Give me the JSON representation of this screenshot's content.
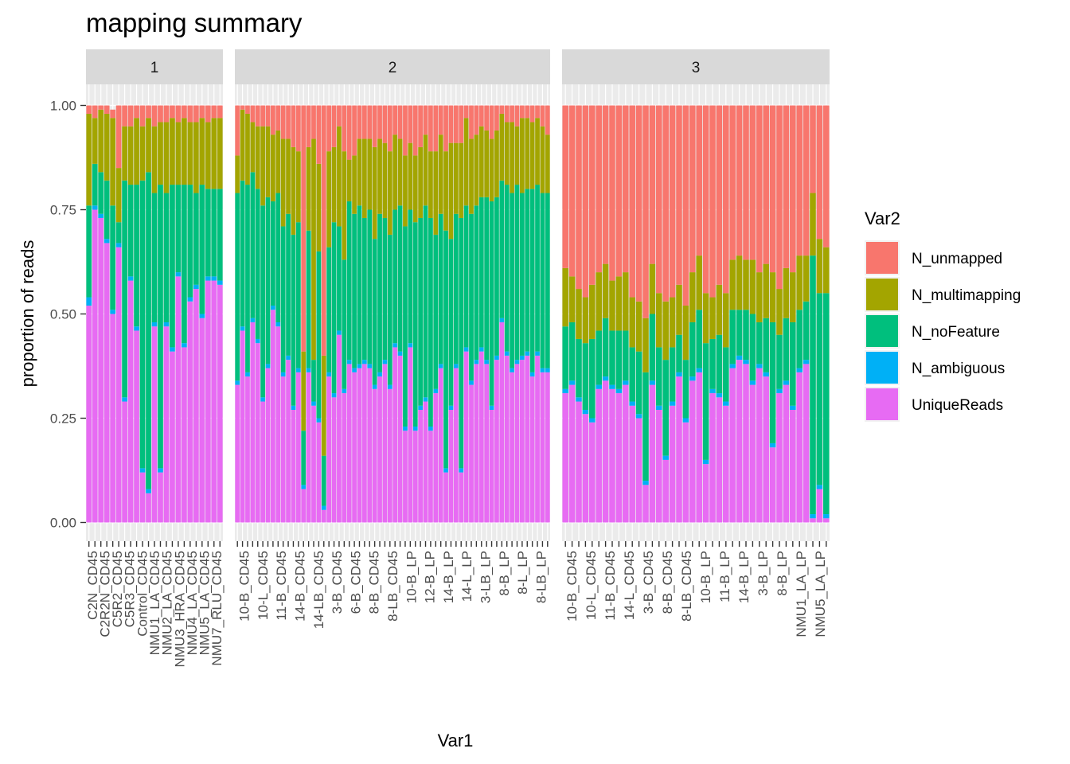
{
  "chart_data": {
    "type": "bar",
    "stacked": true,
    "title": "mapping summary",
    "xlabel": "Var1",
    "ylabel": "proportion of reads",
    "ylim": [
      0,
      1
    ],
    "y_ticks": [
      0,
      0.25,
      0.5,
      0.75,
      1
    ],
    "y_tick_labels": [
      "0.00",
      "0.25",
      "0.50",
      "0.75",
      "1.00"
    ],
    "legend": {
      "title": "Var2",
      "position": "right",
      "entries": [
        {
          "name": "N_unmapped",
          "color": "#F8766D"
        },
        {
          "name": "N_multimapping",
          "color": "#A3A500"
        },
        {
          "name": "N_noFeature",
          "color": "#00BF7D"
        },
        {
          "name": "N_ambiguous",
          "color": "#00B0F6"
        },
        {
          "name": "UniqueReads",
          "color": "#E76BF3"
        }
      ]
    },
    "stack_order": [
      "UniqueReads",
      "N_ambiguous",
      "N_noFeature",
      "N_multimapping",
      "N_unmapped"
    ],
    "panels": [
      {
        "label": "1",
        "tick_labels": [
          "C2N_CD45",
          "C2R2N_CD45",
          "C5R2_CD45",
          "C5R3_CD45",
          "Control_CD45",
          "NMU1_LA_CD45",
          "NMU2_LA_CD45",
          "NMU3_HRA_CD45",
          "NMU4_LA_CD45",
          "NMU5_LA_CD45",
          "NMU7_RLU_CD45"
        ],
        "unique": [
          0.52,
          0.75,
          0.73,
          0.67,
          0.5,
          0.66,
          0.29,
          0.58,
          0.46,
          0.12,
          0.07,
          0.47,
          0.12,
          0.47,
          0.41,
          0.59,
          0.42,
          0.53,
          0.56,
          0.49,
          0.58,
          0.58,
          0.57
        ],
        "ambiguous": [
          0.02,
          0.01,
          0.01,
          0.01,
          0.01,
          0.01,
          0.01,
          0.01,
          0.01,
          0.01,
          0.01,
          0.01,
          0.01,
          0.01,
          0.01,
          0.01,
          0.01,
          0.01,
          0.01,
          0.01,
          0.01,
          0.01,
          0.01
        ],
        "nofeature": [
          0.22,
          0.1,
          0.1,
          0.14,
          0.25,
          0.05,
          0.52,
          0.22,
          0.34,
          0.69,
          0.76,
          0.31,
          0.68,
          0.31,
          0.39,
          0.21,
          0.38,
          0.27,
          0.22,
          0.31,
          0.21,
          0.21,
          0.22
        ],
        "multimapping": [
          0.22,
          0.11,
          0.15,
          0.16,
          0.21,
          0.13,
          0.13,
          0.14,
          0.16,
          0.13,
          0.13,
          0.16,
          0.15,
          0.17,
          0.16,
          0.15,
          0.16,
          0.15,
          0.17,
          0.16,
          0.16,
          0.17,
          0.17
        ],
        "unmapped": [
          0.02,
          0.03,
          0.01,
          0.02,
          0.02,
          0.15,
          0.05,
          0.05,
          0.03,
          0.05,
          0.03,
          0.05,
          0.04,
          0.04,
          0.03,
          0.04,
          0.03,
          0.04,
          0.04,
          0.03,
          0.04,
          0.03,
          0.03
        ]
      },
      {
        "label": "2",
        "tick_labels": [
          "10-B_CD45",
          "10-L_CD45",
          "11-B_CD45",
          "14-B_CD45",
          "14-LB_CD45",
          "3-B_CD45",
          "6-B_CD45",
          "8-B_CD45",
          "8-LB_CD45",
          "10-B_LP",
          "12-B_LP",
          "14-B_LP",
          "14-L_LP",
          "3-LB_LP",
          "8-B_LP",
          "8-L_LP",
          "8-LB_LP"
        ],
        "unique": [
          0.33,
          0.46,
          0.35,
          0.48,
          0.43,
          0.29,
          0.37,
          0.51,
          0.47,
          0.35,
          0.39,
          0.27,
          0.36,
          0.08,
          0.36,
          0.28,
          0.24,
          0.03,
          0.35,
          0.3,
          0.45,
          0.31,
          0.38,
          0.36,
          0.37,
          0.38,
          0.37,
          0.32,
          0.35,
          0.38,
          0.32,
          0.42,
          0.4,
          0.22,
          0.42,
          0.22,
          0.27,
          0.29,
          0.22,
          0.31,
          0.37,
          0.12,
          0.27,
          0.37,
          0.12,
          0.41,
          0.33,
          0.38,
          0.41,
          0.38,
          0.27,
          0.39,
          0.48,
          0.4,
          0.36,
          0.38,
          0.39,
          0.4,
          0.35,
          0.4,
          0.36,
          0.36
        ],
        "ambiguous": [
          0.01,
          0.01,
          0.01,
          0.01,
          0.01,
          0.01,
          0.01,
          0.01,
          0.01,
          0.01,
          0.01,
          0.01,
          0.01,
          0.01,
          0.01,
          0.01,
          0.01,
          0.01,
          0.01,
          0.01,
          0.01,
          0.01,
          0.01,
          0.01,
          0.01,
          0.01,
          0.01,
          0.01,
          0.01,
          0.01,
          0.01,
          0.01,
          0.01,
          0.01,
          0.01,
          0.01,
          0.01,
          0.01,
          0.01,
          0.01,
          0.01,
          0.01,
          0.01,
          0.01,
          0.01,
          0.01,
          0.01,
          0.01,
          0.01,
          0.01,
          0.01,
          0.01,
          0.01,
          0.01,
          0.01,
          0.01,
          0.01,
          0.01,
          0.01,
          0.01,
          0.01,
          0.01
        ],
        "nofeature": [
          0.45,
          0.35,
          0.45,
          0.35,
          0.36,
          0.46,
          0.4,
          0.25,
          0.31,
          0.35,
          0.34,
          0.41,
          0.35,
          0.13,
          0.33,
          0.1,
          0.4,
          0.12,
          0.3,
          0.41,
          0.25,
          0.31,
          0.38,
          0.37,
          0.38,
          0.34,
          0.37,
          0.35,
          0.38,
          0.34,
          0.36,
          0.32,
          0.35,
          0.48,
          0.32,
          0.49,
          0.45,
          0.46,
          0.5,
          0.37,
          0.36,
          0.57,
          0.4,
          0.36,
          0.6,
          0.34,
          0.4,
          0.37,
          0.36,
          0.39,
          0.49,
          0.38,
          0.33,
          0.4,
          0.42,
          0.42,
          0.39,
          0.39,
          0.44,
          0.4,
          0.42,
          0.42
        ],
        "multimapping": [
          0.09,
          0.17,
          0.17,
          0.12,
          0.15,
          0.19,
          0.17,
          0.16,
          0.15,
          0.21,
          0.18,
          0.21,
          0.17,
          0.19,
          0.2,
          0.53,
          0.21,
          0.24,
          0.23,
          0.18,
          0.24,
          0.26,
          0.1,
          0.14,
          0.16,
          0.19,
          0.17,
          0.22,
          0.18,
          0.18,
          0.2,
          0.18,
          0.16,
          0.17,
          0.16,
          0.16,
          0.17,
          0.17,
          0.16,
          0.2,
          0.19,
          0.19,
          0.23,
          0.17,
          0.18,
          0.21,
          0.18,
          0.17,
          0.17,
          0.16,
          0.15,
          0.16,
          0.16,
          0.15,
          0.17,
          0.14,
          0.18,
          0.17,
          0.16,
          0.16,
          0.16,
          0.14
        ],
        "unmapped": [
          0.12,
          0.01,
          0.02,
          0.04,
          0.05,
          0.05,
          0.05,
          0.07,
          0.06,
          0.08,
          0.08,
          0.1,
          0.11,
          0.59,
          0.1,
          0.08,
          0.14,
          0.6,
          0.11,
          0.1,
          0.05,
          0.11,
          0.13,
          0.12,
          0.08,
          0.08,
          0.08,
          0.1,
          0.08,
          0.09,
          0.11,
          0.07,
          0.08,
          0.12,
          0.09,
          0.12,
          0.1,
          0.07,
          0.11,
          0.11,
          0.07,
          0.11,
          0.09,
          0.09,
          0.09,
          0.03,
          0.08,
          0.07,
          0.05,
          0.06,
          0.08,
          0.06,
          0.02,
          0.04,
          0.04,
          0.05,
          0.03,
          0.03,
          0.04,
          0.03,
          0.05,
          0.07
        ]
      },
      {
        "label": "3",
        "tick_labels": [
          "10-B_CD45",
          "10-L_CD45",
          "11-B_CD45",
          "14-L_CD45",
          "3-B_CD45",
          "8-B_CD45",
          "8-LB_CD45",
          "10-B_LP",
          "11-B_LP",
          "14-B_LP",
          "3-B_LP",
          "8-B_LP",
          "NMU1_LA_LP",
          "NMU5_LA_LP"
        ],
        "unique": [
          0.31,
          0.33,
          0.29,
          0.26,
          0.24,
          0.32,
          0.34,
          0.32,
          0.31,
          0.33,
          0.28,
          0.25,
          0.09,
          0.33,
          0.27,
          0.15,
          0.28,
          0.35,
          0.24,
          0.34,
          0.36,
          0.14,
          0.31,
          0.3,
          0.28,
          0.37,
          0.39,
          0.38,
          0.33,
          0.37,
          0.35,
          0.18,
          0.31,
          0.33,
          0.27,
          0.36,
          0.38,
          0.01,
          0.08,
          0.01
        ],
        "ambiguous": [
          0.01,
          0.01,
          0.01,
          0.01,
          0.01,
          0.01,
          0.01,
          0.01,
          0.01,
          0.01,
          0.01,
          0.01,
          0.01,
          0.01,
          0.01,
          0.01,
          0.01,
          0.01,
          0.01,
          0.01,
          0.01,
          0.01,
          0.01,
          0.01,
          0.01,
          0.01,
          0.01,
          0.01,
          0.01,
          0.01,
          0.01,
          0.01,
          0.01,
          0.01,
          0.01,
          0.01,
          0.01,
          0.01,
          0.01,
          0.01
        ],
        "nofeature": [
          0.15,
          0.14,
          0.14,
          0.16,
          0.19,
          0.13,
          0.14,
          0.13,
          0.14,
          0.12,
          0.13,
          0.15,
          0.26,
          0.16,
          0.14,
          0.23,
          0.13,
          0.09,
          0.14,
          0.13,
          0.14,
          0.28,
          0.12,
          0.14,
          0.13,
          0.13,
          0.11,
          0.12,
          0.16,
          0.1,
          0.13,
          0.29,
          0.13,
          0.15,
          0.2,
          0.14,
          0.14,
          0.62,
          0.46,
          0.53
        ],
        "multimapping": [
          0.14,
          0.11,
          0.12,
          0.11,
          0.13,
          0.14,
          0.13,
          0.12,
          0.13,
          0.14,
          0.12,
          0.12,
          0.13,
          0.12,
          0.13,
          0.14,
          0.12,
          0.12,
          0.13,
          0.12,
          0.13,
          0.12,
          0.1,
          0.12,
          0.13,
          0.12,
          0.13,
          0.12,
          0.13,
          0.12,
          0.13,
          0.12,
          0.11,
          0.12,
          0.12,
          0.13,
          0.11,
          0.15,
          0.13,
          0.11
        ],
        "unmapped": [
          0.39,
          0.41,
          0.44,
          0.46,
          0.43,
          0.4,
          0.38,
          0.42,
          0.41,
          0.4,
          0.46,
          0.47,
          0.51,
          0.38,
          0.45,
          0.47,
          0.46,
          0.43,
          0.48,
          0.4,
          0.36,
          0.45,
          0.46,
          0.43,
          0.45,
          0.37,
          0.36,
          0.37,
          0.37,
          0.4,
          0.38,
          0.4,
          0.45,
          0.39,
          0.4,
          0.36,
          0.36,
          0.21,
          0.32,
          0.34
        ]
      }
    ]
  }
}
